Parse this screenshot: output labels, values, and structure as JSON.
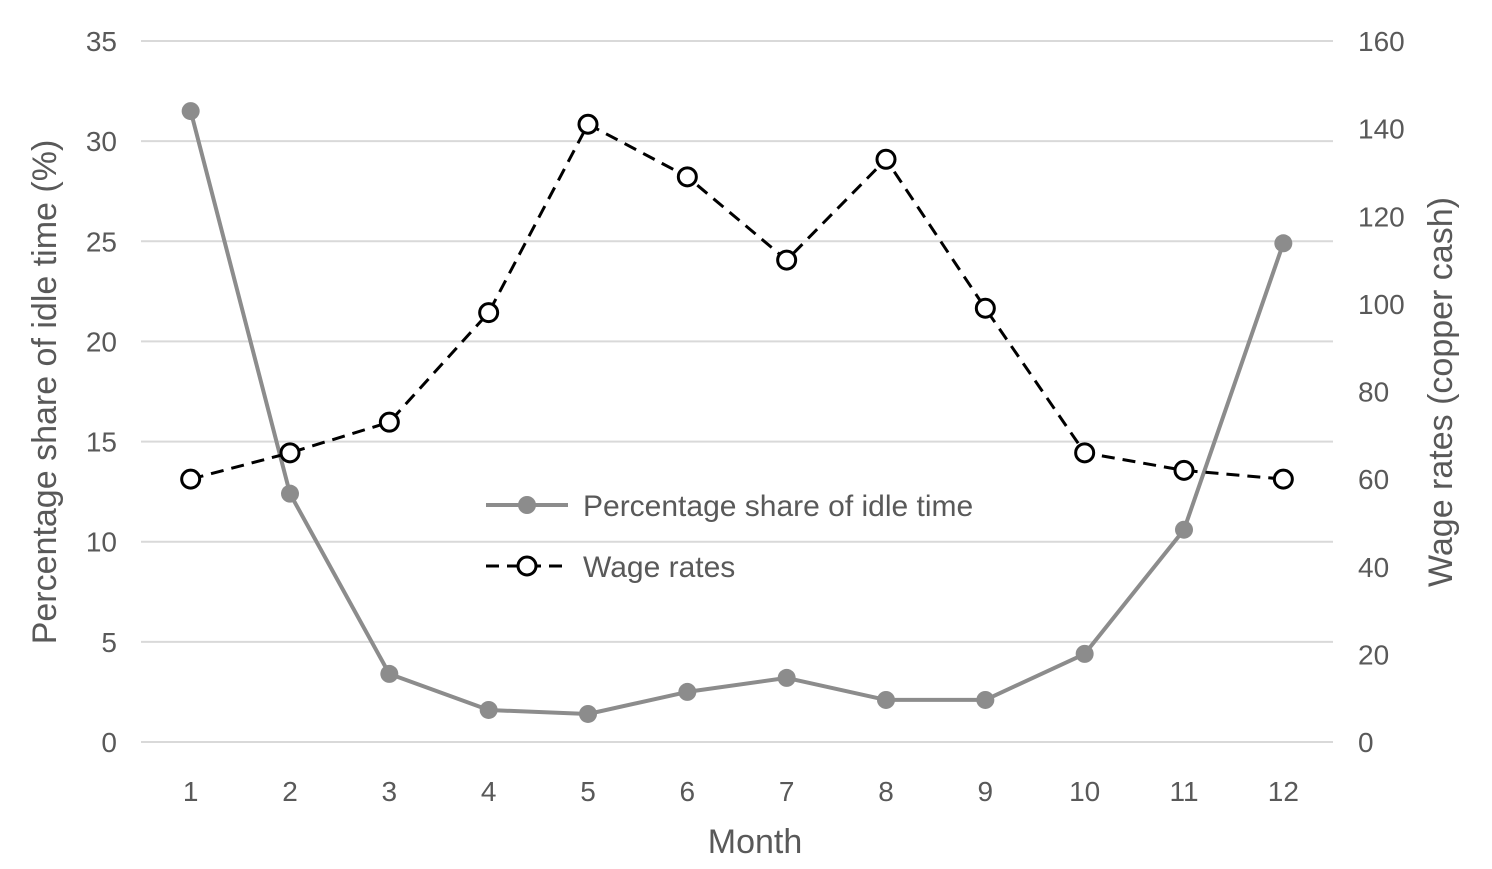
{
  "chart_data": {
    "type": "line",
    "title": "",
    "xlabel": "Month",
    "ylabel": "Percentage share of idle time (%)",
    "y2label": "Wage rates (copper cash)",
    "categories": [
      "1",
      "2",
      "3",
      "4",
      "5",
      "6",
      "7",
      "8",
      "9",
      "10",
      "11",
      "12"
    ],
    "ylim": [
      0,
      35
    ],
    "y2lim": [
      0,
      160
    ],
    "yticks": [
      "0",
      "5",
      "10",
      "15",
      "20",
      "25",
      "30",
      "35"
    ],
    "y2ticks": [
      "0",
      "20",
      "40",
      "60",
      "80",
      "100",
      "120",
      "140",
      "160"
    ],
    "grid": true,
    "legend_position": "center",
    "series": [
      {
        "name": "Percentage share of idle time",
        "axis": "left",
        "style": "solid",
        "marker": "filled-circle",
        "color": "#8c8c8c",
        "values": [
          31.5,
          12.4,
          3.4,
          1.6,
          1.4,
          2.5,
          3.2,
          2.1,
          2.1,
          4.4,
          10.6,
          24.9
        ]
      },
      {
        "name": "Wage rates",
        "axis": "right",
        "style": "dashed",
        "marker": "open-circle",
        "color": "#000000",
        "values": [
          60,
          66,
          73,
          98,
          141,
          129,
          110,
          133,
          99,
          66,
          62,
          60
        ]
      }
    ]
  }
}
